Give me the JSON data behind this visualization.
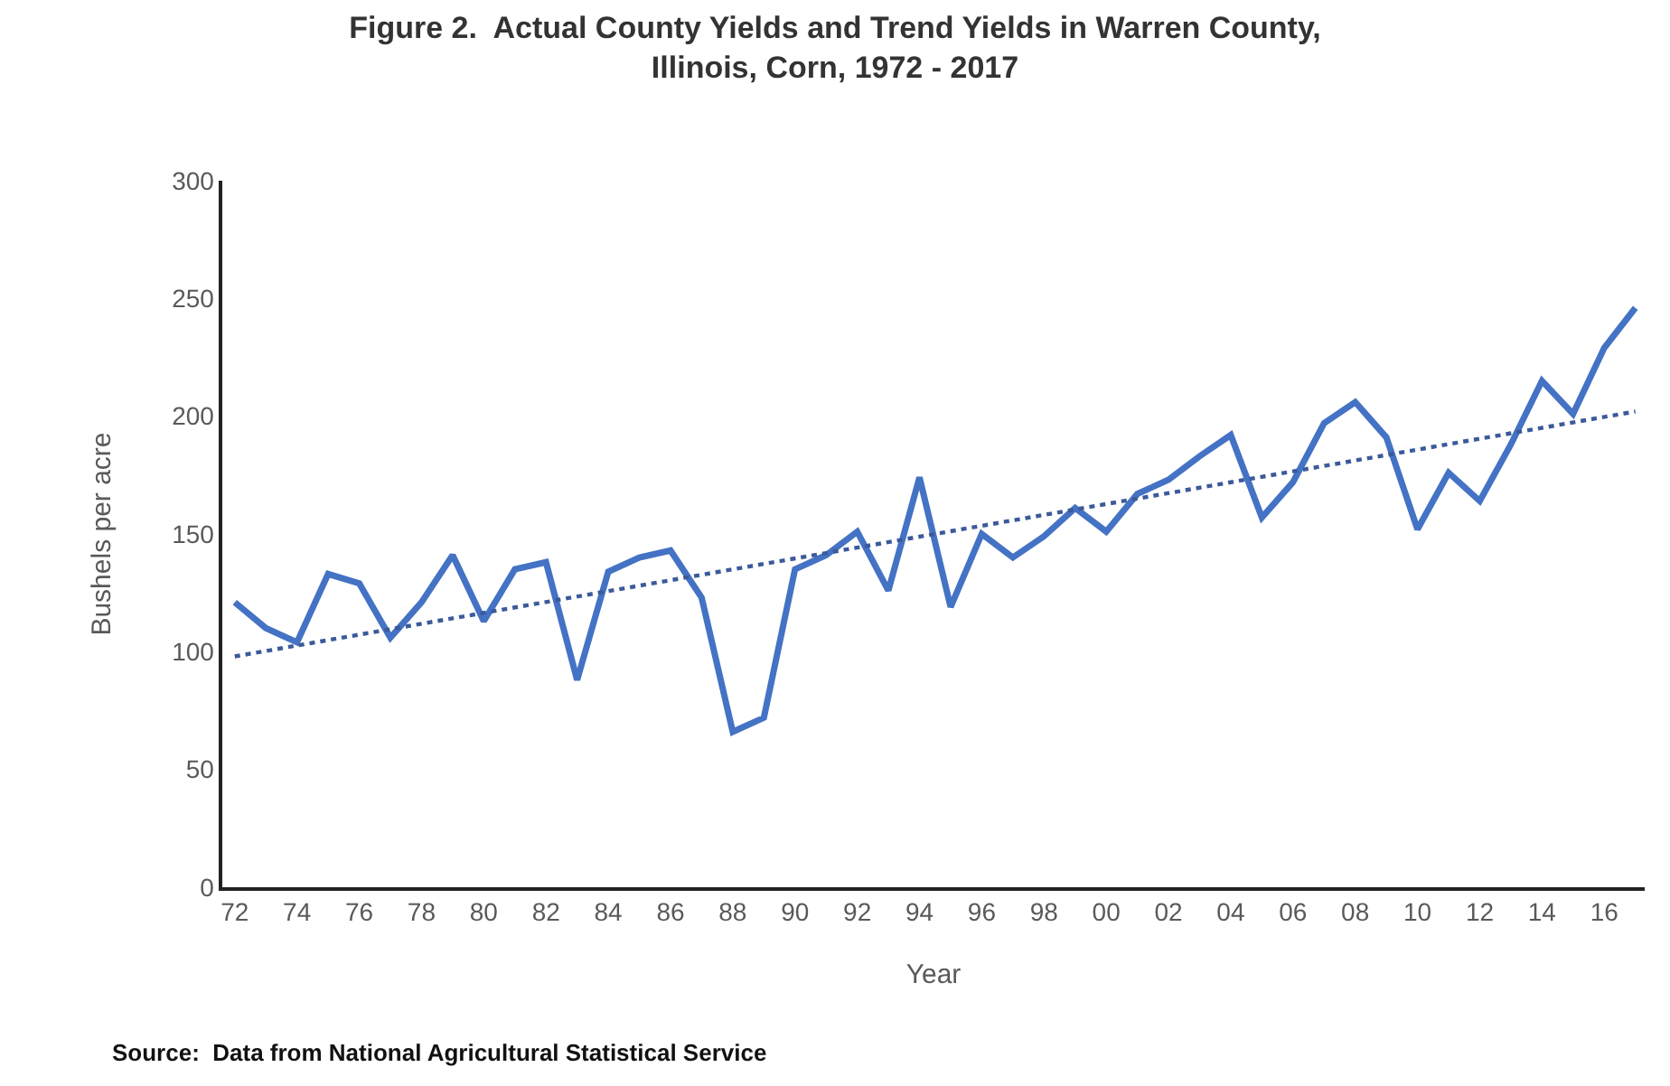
{
  "chart_data": {
    "type": "line",
    "title": "Figure 2.  Actual County Yields and Trend Yields in Warren County,\nIllinois, Corn, 1972 - 2017",
    "xlabel": "Year",
    "ylabel": "Bushels per acre",
    "annotations": [
      "Source:  Data from National Agricultural Statistical Service"
    ],
    "x": [
      1972,
      1973,
      1974,
      1975,
      1976,
      1977,
      1978,
      1979,
      1980,
      1981,
      1982,
      1983,
      1984,
      1985,
      1986,
      1987,
      1988,
      1989,
      1990,
      1991,
      1992,
      1993,
      1994,
      1995,
      1996,
      1997,
      1998,
      1999,
      2000,
      2001,
      2002,
      2003,
      2004,
      2005,
      2006,
      2007,
      2008,
      2009,
      2010,
      2011,
      2012,
      2013,
      2014,
      2015,
      2016,
      2017
    ],
    "series": [
      {
        "color": "#4472c4",
        "line_style": "solid",
        "values": [
          121,
          110,
          104,
          133,
          129,
          106,
          121,
          141,
          113,
          135,
          138,
          88,
          134,
          140,
          143,
          123,
          66,
          72,
          135,
          141,
          151,
          126,
          174,
          119,
          150,
          140,
          149,
          161,
          151,
          167,
          173,
          183,
          192,
          157,
          172,
          197,
          206,
          191,
          152,
          176,
          164,
          188,
          215,
          201,
          229,
          246
        ]
      },
      {
        "color": "#3b5a9a",
        "line_style": "dotted",
        "x": [
          1972,
          2017
        ],
        "values": [
          98,
          202
        ]
      }
    ],
    "xlim": [
      1971.6,
      2017.3
    ],
    "xticks": [
      {
        "value": 1972,
        "label": "72"
      },
      {
        "value": 1974,
        "label": "74"
      },
      {
        "value": 1976,
        "label": "76"
      },
      {
        "value": 1978,
        "label": "78"
      },
      {
        "value": 1980,
        "label": "80"
      },
      {
        "value": 1982,
        "label": "82"
      },
      {
        "value": 1984,
        "label": "84"
      },
      {
        "value": 1986,
        "label": "86"
      },
      {
        "value": 1988,
        "label": "88"
      },
      {
        "value": 1990,
        "label": "90"
      },
      {
        "value": 1992,
        "label": "92"
      },
      {
        "value": 1994,
        "label": "94"
      },
      {
        "value": 1996,
        "label": "96"
      },
      {
        "value": 1998,
        "label": "98"
      },
      {
        "value": 2000,
        "label": "00"
      },
      {
        "value": 2002,
        "label": "02"
      },
      {
        "value": 2004,
        "label": "04"
      },
      {
        "value": 2006,
        "label": "06"
      },
      {
        "value": 2008,
        "label": "08"
      },
      {
        "value": 2010,
        "label": "10"
      },
      {
        "value": 2012,
        "label": "12"
      },
      {
        "value": 2014,
        "label": "14"
      },
      {
        "value": 2016,
        "label": "16"
      }
    ],
    "ylim": [
      0,
      300
    ],
    "yticks": [
      0,
      50,
      100,
      150,
      200,
      250,
      300
    ],
    "marker": "none"
  }
}
